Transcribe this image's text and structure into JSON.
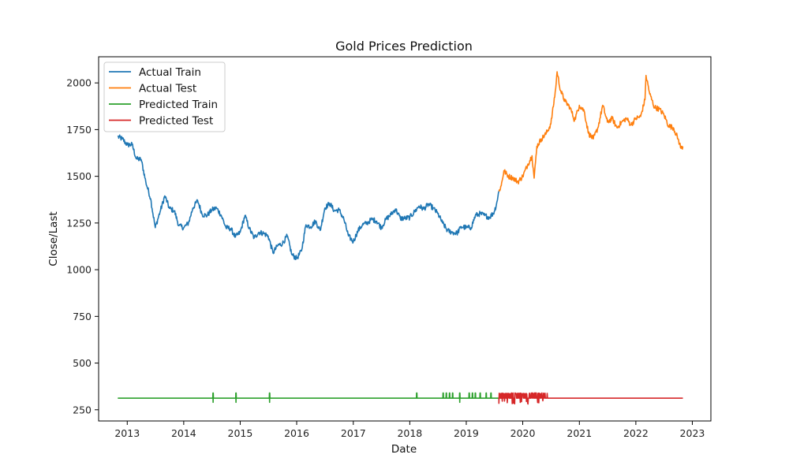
{
  "chart_data": {
    "type": "line",
    "title": "Gold Prices Prediction",
    "xlabel": "Date",
    "ylabel": "Close/Last",
    "xlim": [
      "2012-06-30",
      "2023-05-01"
    ],
    "ylim": [
      190,
      2140
    ],
    "x_ticks": [
      "2013",
      "2014",
      "2015",
      "2016",
      "2017",
      "2018",
      "2019",
      "2020",
      "2021",
      "2022",
      "2023"
    ],
    "y_ticks": [
      250,
      500,
      750,
      1000,
      1250,
      1500,
      1750,
      2000
    ],
    "grid": false,
    "legend_position": "top-left",
    "series": [
      {
        "name": "Actual Train",
        "color": "#1f77b4",
        "points": [
          [
            "2012-11-01",
            1712
          ],
          [
            "2012-12-01",
            1700
          ],
          [
            "2013-01-01",
            1668
          ],
          [
            "2013-02-01",
            1670
          ],
          [
            "2013-03-01",
            1593
          ],
          [
            "2013-04-01",
            1590
          ],
          [
            "2013-05-01",
            1470
          ],
          [
            "2013-06-01",
            1380
          ],
          [
            "2013-07-01",
            1225
          ],
          [
            "2013-08-01",
            1310
          ],
          [
            "2013-09-01",
            1395
          ],
          [
            "2013-10-01",
            1328
          ],
          [
            "2013-11-01",
            1315
          ],
          [
            "2013-12-01",
            1235
          ],
          [
            "2014-01-01",
            1225
          ],
          [
            "2014-02-01",
            1250
          ],
          [
            "2014-03-01",
            1330
          ],
          [
            "2014-04-01",
            1370
          ],
          [
            "2014-05-01",
            1295
          ],
          [
            "2014-06-01",
            1290
          ],
          [
            "2014-07-01",
            1320
          ],
          [
            "2014-08-01",
            1330
          ],
          [
            "2014-09-01",
            1290
          ],
          [
            "2014-10-01",
            1225
          ],
          [
            "2014-11-01",
            1220
          ],
          [
            "2014-12-01",
            1175
          ],
          [
            "2015-01-01",
            1200
          ],
          [
            "2015-02-01",
            1290
          ],
          [
            "2015-03-01",
            1220
          ],
          [
            "2015-04-01",
            1170
          ],
          [
            "2015-05-01",
            1200
          ],
          [
            "2015-06-01",
            1195
          ],
          [
            "2015-07-01",
            1180
          ],
          [
            "2015-08-01",
            1090
          ],
          [
            "2015-09-01",
            1130
          ],
          [
            "2015-10-01",
            1140
          ],
          [
            "2015-11-01",
            1180
          ],
          [
            "2015-12-01",
            1080
          ],
          [
            "2016-01-01",
            1060
          ],
          [
            "2016-02-01",
            1100
          ],
          [
            "2016-03-01",
            1240
          ],
          [
            "2016-04-01",
            1230
          ],
          [
            "2016-05-01",
            1260
          ],
          [
            "2016-06-01",
            1210
          ],
          [
            "2016-07-01",
            1330
          ],
          [
            "2016-08-01",
            1355
          ],
          [
            "2016-09-01",
            1315
          ],
          [
            "2016-10-01",
            1320
          ],
          [
            "2016-11-01",
            1270
          ],
          [
            "2016-12-01",
            1180
          ],
          [
            "2017-01-01",
            1150
          ],
          [
            "2017-02-01",
            1210
          ],
          [
            "2017-03-01",
            1240
          ],
          [
            "2017-04-01",
            1250
          ],
          [
            "2017-05-01",
            1270
          ],
          [
            "2017-06-01",
            1260
          ],
          [
            "2017-07-01",
            1225
          ],
          [
            "2017-08-01",
            1270
          ],
          [
            "2017-09-01",
            1295
          ],
          [
            "2017-10-01",
            1325
          ],
          [
            "2017-11-01",
            1275
          ],
          [
            "2017-12-01",
            1275
          ],
          [
            "2018-01-01",
            1280
          ],
          [
            "2018-02-01",
            1310
          ],
          [
            "2018-03-01",
            1340
          ],
          [
            "2018-04-01",
            1325
          ],
          [
            "2018-05-01",
            1350
          ],
          [
            "2018-06-01",
            1330
          ],
          [
            "2018-07-01",
            1300
          ],
          [
            "2018-08-01",
            1250
          ],
          [
            "2018-09-01",
            1210
          ],
          [
            "2018-10-01",
            1200
          ],
          [
            "2018-11-01",
            1195
          ],
          [
            "2018-12-01",
            1230
          ],
          [
            "2019-01-01",
            1225
          ],
          [
            "2019-02-01",
            1225
          ],
          [
            "2019-03-01",
            1290
          ],
          [
            "2019-04-01",
            1300
          ],
          [
            "2019-05-01",
            1290
          ],
          [
            "2019-06-01",
            1280
          ],
          [
            "2019-07-01",
            1310
          ],
          [
            "2019-07-15",
            1350
          ],
          [
            "2019-07-31",
            1420
          ]
        ]
      },
      {
        "name": "Actual Test",
        "color": "#ff7f0e",
        "points": [
          [
            "2019-07-31",
            1420
          ],
          [
            "2019-08-15",
            1450
          ],
          [
            "2019-09-01",
            1530
          ],
          [
            "2019-10-01",
            1500
          ],
          [
            "2019-11-01",
            1490
          ],
          [
            "2019-12-01",
            1470
          ],
          [
            "2020-01-01",
            1500
          ],
          [
            "2020-02-01",
            1560
          ],
          [
            "2020-03-01",
            1610
          ],
          [
            "2020-03-15",
            1490
          ],
          [
            "2020-04-01",
            1660
          ],
          [
            "2020-05-01",
            1700
          ],
          [
            "2020-06-01",
            1730
          ],
          [
            "2020-07-01",
            1780
          ],
          [
            "2020-08-01",
            1970
          ],
          [
            "2020-08-10",
            2060
          ],
          [
            "2020-09-01",
            1960
          ],
          [
            "2020-10-01",
            1900
          ],
          [
            "2020-11-01",
            1870
          ],
          [
            "2020-12-01",
            1800
          ],
          [
            "2021-01-01",
            1880
          ],
          [
            "2021-02-01",
            1850
          ],
          [
            "2021-03-01",
            1730
          ],
          [
            "2021-04-01",
            1700
          ],
          [
            "2021-05-01",
            1760
          ],
          [
            "2021-06-01",
            1880
          ],
          [
            "2021-07-01",
            1790
          ],
          [
            "2021-08-01",
            1810
          ],
          [
            "2021-09-01",
            1760
          ],
          [
            "2021-10-01",
            1790
          ],
          [
            "2021-11-01",
            1810
          ],
          [
            "2021-12-01",
            1775
          ],
          [
            "2022-01-01",
            1810
          ],
          [
            "2022-02-01",
            1820
          ],
          [
            "2022-03-01",
            1910
          ],
          [
            "2022-03-08",
            2040
          ],
          [
            "2022-04-01",
            1940
          ],
          [
            "2022-05-01",
            1870
          ],
          [
            "2022-06-01",
            1860
          ],
          [
            "2022-07-01",
            1830
          ],
          [
            "2022-08-01",
            1770
          ],
          [
            "2022-09-01",
            1760
          ],
          [
            "2022-10-01",
            1700
          ],
          [
            "2022-10-20",
            1650
          ],
          [
            "2022-11-01",
            1660
          ]
        ]
      },
      {
        "name": "Predicted Train",
        "color": "#2ca02c",
        "base": 312,
        "range": [
          "2012-11-01",
          "2019-07-31"
        ],
        "spikes": [
          [
            "2014-07-10",
            340,
            290
          ],
          [
            "2014-12-05",
            340,
            290
          ],
          [
            "2015-07-10",
            340,
            290
          ],
          [
            "2018-02-15",
            340,
            312
          ],
          [
            "2018-08-05",
            340,
            312
          ],
          [
            "2018-08-25",
            340,
            312
          ],
          [
            "2018-09-15",
            340,
            312
          ],
          [
            "2018-10-05",
            340,
            312
          ],
          [
            "2018-11-20",
            340,
            290
          ],
          [
            "2019-01-20",
            340,
            312
          ],
          [
            "2019-02-10",
            340,
            312
          ],
          [
            "2019-03-01",
            340,
            312
          ],
          [
            "2019-04-01",
            340,
            312
          ],
          [
            "2019-05-10",
            340,
            312
          ],
          [
            "2019-06-10",
            340,
            312
          ]
        ]
      },
      {
        "name": "Predicted Test",
        "color": "#d62728",
        "base": 312,
        "range": [
          "2019-07-31",
          "2022-11-01"
        ],
        "noisy_range": [
          "2019-07-31",
          "2020-06-10"
        ],
        "noise_high": 340,
        "noise_low": 280
      }
    ]
  }
}
